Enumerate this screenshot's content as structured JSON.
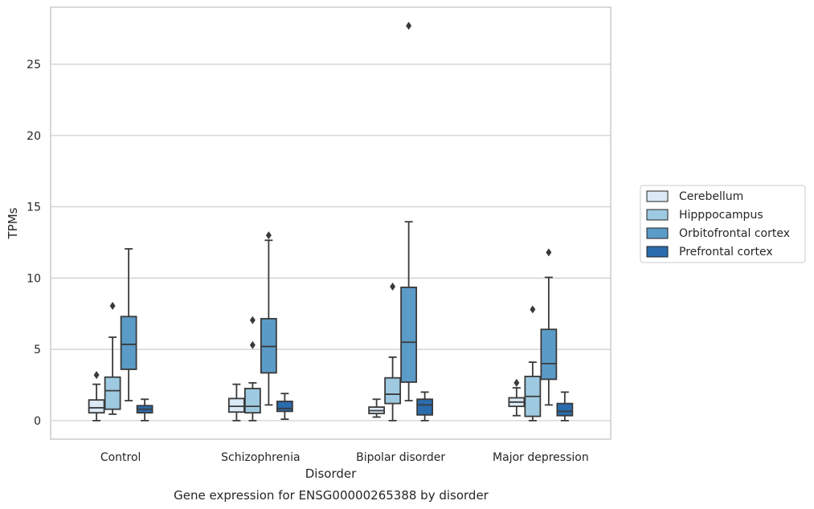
{
  "chart_data": {
    "type": "box",
    "caption": "Gene expression for ENSG00000265388 by disorder",
    "xlabel": "Disorder",
    "ylabel": "TPMs",
    "ylim": [
      -1.3,
      29
    ],
    "yticks": [
      0,
      5,
      10,
      15,
      20,
      25
    ],
    "grid": "horizontal",
    "legend_position": "right",
    "categories": [
      "Control",
      "Schizophrenia",
      "Bipolar disorder",
      "Major depression"
    ],
    "series": [
      {
        "name": "Cerebellum",
        "color": "#dbe9f6",
        "boxes": [
          {
            "min": 0.0,
            "q1": 0.55,
            "median": 0.9,
            "q3": 1.45,
            "max": 2.55,
            "outliers": [
              3.2
            ]
          },
          {
            "min": 0.0,
            "q1": 0.6,
            "median": 1.0,
            "q3": 1.55,
            "max": 2.55,
            "outliers": []
          },
          {
            "min": 0.25,
            "q1": 0.5,
            "median": 0.7,
            "q3": 0.95,
            "max": 1.5,
            "outliers": []
          },
          {
            "min": 0.35,
            "q1": 1.0,
            "median": 1.3,
            "q3": 1.6,
            "max": 2.3,
            "outliers": [
              2.65
            ]
          }
        ]
      },
      {
        "name": "Hipppocampus",
        "color": "#9ecae1",
        "boxes": [
          {
            "min": 0.45,
            "q1": 0.8,
            "median": 2.1,
            "q3": 3.05,
            "max": 5.85,
            "outliers": [
              8.05
            ]
          },
          {
            "min": 0.0,
            "q1": 0.55,
            "median": 1.0,
            "q3": 2.25,
            "max": 2.65,
            "outliers": [
              5.3,
              7.05
            ]
          },
          {
            "min": 0.0,
            "q1": 1.2,
            "median": 1.85,
            "q3": 3.0,
            "max": 4.45,
            "outliers": [
              9.4
            ]
          },
          {
            "min": 0.0,
            "q1": 0.3,
            "median": 1.7,
            "q3": 3.1,
            "max": 4.1,
            "outliers": [
              7.8
            ]
          }
        ]
      },
      {
        "name": "Orbitofrontal cortex",
        "color": "#5b9bc8",
        "boxes": [
          {
            "min": 1.4,
            "q1": 3.6,
            "median": 5.35,
            "q3": 7.3,
            "max": 12.05,
            "outliers": []
          },
          {
            "min": 1.1,
            "q1": 3.35,
            "median": 5.2,
            "q3": 7.15,
            "max": 12.65,
            "outliers": [
              13.0
            ]
          },
          {
            "min": 1.4,
            "q1": 2.7,
            "median": 5.5,
            "q3": 9.35,
            "max": 13.95,
            "outliers": [
              27.7
            ]
          },
          {
            "min": 1.1,
            "q1": 2.9,
            "median": 4.0,
            "q3": 6.4,
            "max": 10.05,
            "outliers": [
              11.8
            ]
          }
        ]
      },
      {
        "name": "Prefrontal cortex",
        "color": "#2a6cad",
        "boxes": [
          {
            "min": 0.0,
            "q1": 0.55,
            "median": 0.8,
            "q3": 1.05,
            "max": 1.5,
            "outliers": []
          },
          {
            "min": 0.1,
            "q1": 0.65,
            "median": 0.85,
            "q3": 1.35,
            "max": 1.9,
            "outliers": []
          },
          {
            "min": 0.0,
            "q1": 0.4,
            "median": 1.1,
            "q3": 1.5,
            "max": 2.0,
            "outliers": []
          },
          {
            "min": 0.0,
            "q1": 0.35,
            "median": 0.65,
            "q3": 1.2,
            "max": 2.0,
            "outliers": []
          }
        ]
      }
    ]
  }
}
